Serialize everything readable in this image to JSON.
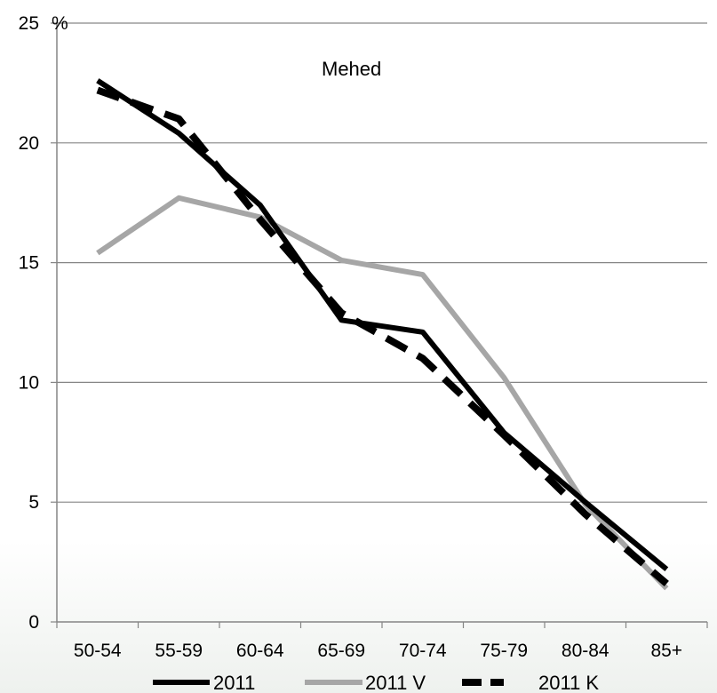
{
  "chart_data": {
    "type": "line",
    "title": "Mehed",
    "ylabel": "%",
    "xlabel": "",
    "categories": [
      "50-54",
      "55-59",
      "60-64",
      "65-69",
      "70-74",
      "75-79",
      "80-84",
      "85+"
    ],
    "ylim": [
      0,
      25
    ],
    "yticks": [
      0,
      5,
      10,
      15,
      20,
      25
    ],
    "grid": true,
    "legend_position": "bottom",
    "series": [
      {
        "name": "2011",
        "values": [
          22.6,
          20.4,
          17.4,
          12.6,
          12.1,
          7.9,
          5.0,
          2.2
        ],
        "color": "#000000",
        "style": "solid"
      },
      {
        "name": "2011 V",
        "values": [
          15.4,
          17.7,
          16.9,
          15.1,
          14.5,
          10.2,
          4.9,
          1.4
        ],
        "color": "#a6a6a6",
        "style": "solid"
      },
      {
        "name": "2011 K",
        "values": [
          22.2,
          21.0,
          16.8,
          12.9,
          11.0,
          7.8,
          4.5,
          1.6
        ],
        "color": "#000000",
        "style": "dashed"
      }
    ]
  }
}
